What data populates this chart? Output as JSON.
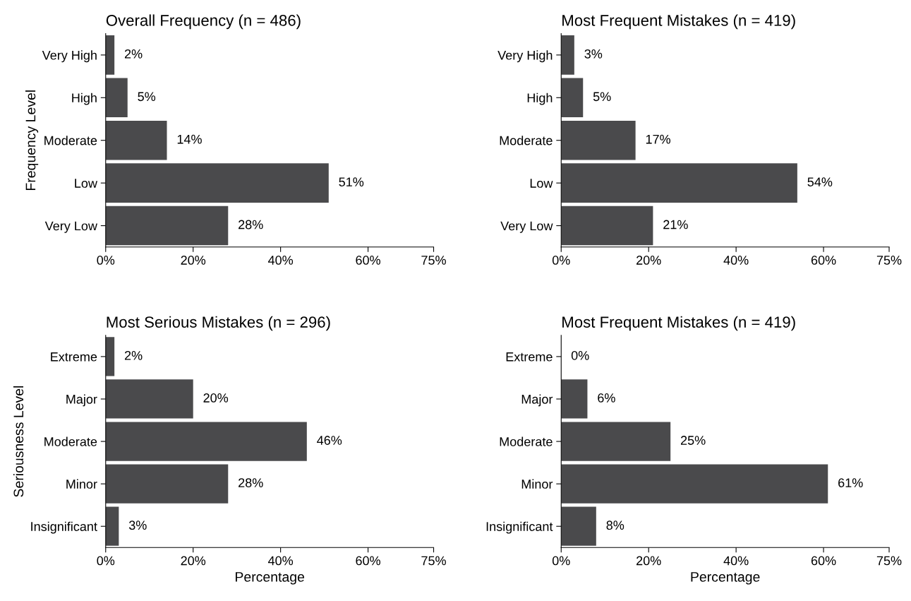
{
  "chart_data": [
    {
      "type": "bar",
      "orientation": "horizontal",
      "title": "Overall Frequency (n = 486)",
      "ylabel": "Frequency Level",
      "categories": [
        "Very High",
        "High",
        "Moderate",
        "Low",
        "Very Low"
      ],
      "values": [
        2,
        5,
        14,
        51,
        28
      ],
      "value_labels": [
        "2%",
        "5%",
        "14%",
        "51%",
        "28%"
      ],
      "color": "#4a4a4c",
      "xlim": [
        0,
        75
      ],
      "xticks": [
        {
          "value": 0,
          "label": "0%"
        },
        {
          "value": 20,
          "label": "20%"
        },
        {
          "value": 40,
          "label": "40%"
        },
        {
          "value": 60,
          "label": "60%"
        },
        {
          "value": 75,
          "label": "75%"
        }
      ],
      "grid": false,
      "legend": false
    },
    {
      "type": "bar",
      "orientation": "horizontal",
      "title": "Most Frequent Mistakes (n = 419)",
      "categories": [
        "Very High",
        "High",
        "Moderate",
        "Low",
        "Very Low"
      ],
      "values": [
        3,
        5,
        17,
        54,
        21
      ],
      "value_labels": [
        "3%",
        "5%",
        "17%",
        "54%",
        "21%"
      ],
      "color": "#4a4a4c",
      "xlim": [
        0,
        75
      ],
      "xticks": [
        {
          "value": 0,
          "label": "0%"
        },
        {
          "value": 20,
          "label": "20%"
        },
        {
          "value": 40,
          "label": "40%"
        },
        {
          "value": 60,
          "label": "60%"
        },
        {
          "value": 75,
          "label": "75%"
        }
      ],
      "grid": false,
      "legend": false
    },
    {
      "type": "bar",
      "orientation": "horizontal",
      "title": "Most Serious Mistakes (n = 296)",
      "ylabel": "Seriousness Level",
      "xlabel": "Percentage",
      "categories": [
        "Extreme",
        "Major",
        "Moderate",
        "Minor",
        "Insignificant"
      ],
      "values": [
        2,
        20,
        46,
        28,
        3
      ],
      "value_labels": [
        "2%",
        "20%",
        "46%",
        "28%",
        "3%"
      ],
      "color": "#4a4a4c",
      "xlim": [
        0,
        75
      ],
      "xticks": [
        {
          "value": 0,
          "label": "0%"
        },
        {
          "value": 20,
          "label": "20%"
        },
        {
          "value": 40,
          "label": "40%"
        },
        {
          "value": 60,
          "label": "60%"
        },
        {
          "value": 75,
          "label": "75%"
        }
      ],
      "grid": false,
      "legend": false
    },
    {
      "type": "bar",
      "orientation": "horizontal",
      "title": "Most Frequent Mistakes (n = 419)",
      "xlabel": "Percentage",
      "categories": [
        "Extreme",
        "Major",
        "Moderate",
        "Minor",
        "Insignificant"
      ],
      "values": [
        0,
        6,
        25,
        61,
        8
      ],
      "value_labels": [
        "0%",
        "6%",
        "25%",
        "61%",
        "8%"
      ],
      "color": "#4a4a4c",
      "xlim": [
        0,
        75
      ],
      "xticks": [
        {
          "value": 0,
          "label": "0%"
        },
        {
          "value": 20,
          "label": "20%"
        },
        {
          "value": 40,
          "label": "40%"
        },
        {
          "value": 60,
          "label": "60%"
        },
        {
          "value": 75,
          "label": "75%"
        }
      ],
      "grid": false,
      "legend": false
    }
  ]
}
